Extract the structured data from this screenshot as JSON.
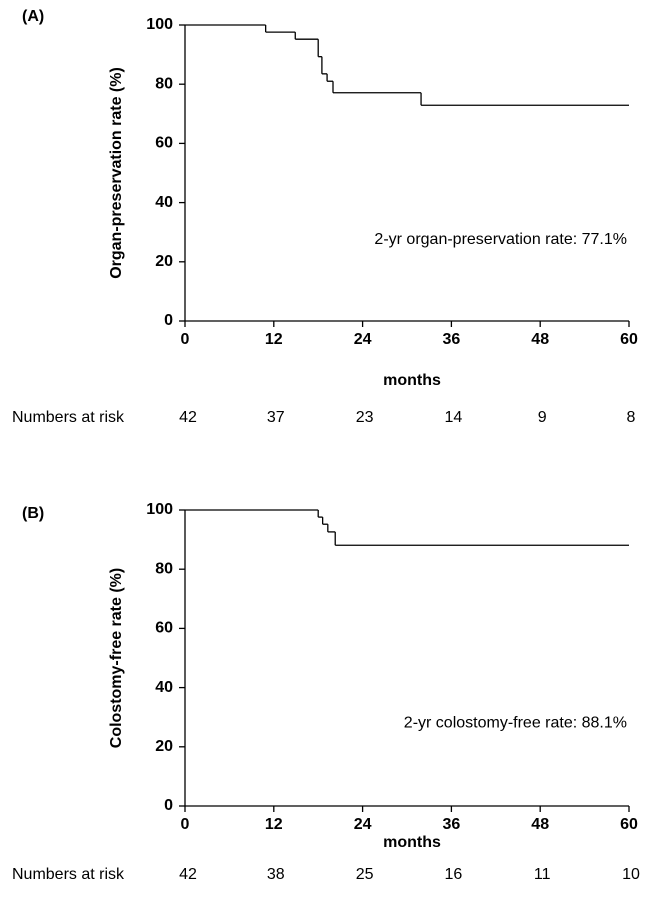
{
  "chart_data": [
    {
      "type": "step",
      "panel_label": "(A)",
      "ylabel": "Organ-preservation rate (%)",
      "xlabel": "months",
      "annotation": "2-yr organ-preservation rate: 77.1%",
      "x": [
        0,
        10.9,
        14.9,
        18,
        18.5,
        19.2,
        20,
        31.9,
        60
      ],
      "values": [
        100,
        97.6,
        95.2,
        89.3,
        83.5,
        81,
        77.1,
        72.9,
        72.9
      ],
      "color": "#000000",
      "xlim": [
        0,
        60
      ],
      "xticks": [
        0,
        12,
        24,
        36,
        48,
        60
      ],
      "ylim": [
        0,
        100
      ],
      "yticks": [
        0,
        20,
        40,
        60,
        80,
        100
      ],
      "risk_table": {
        "label": "Numbers at risk",
        "values": [
          42,
          37,
          23,
          14,
          9,
          8
        ]
      }
    },
    {
      "type": "step",
      "panel_label": "(B)",
      "ylabel": "Colostomy-free rate (%)",
      "xlabel": "months",
      "annotation": "2-yr colostomy-free rate: 88.1%",
      "x": [
        0,
        18,
        18.6,
        19.3,
        20.3,
        60
      ],
      "values": [
        100,
        97.6,
        95.2,
        92.6,
        88.1,
        88.1
      ],
      "color": "#000000",
      "xlim": [
        0,
        60
      ],
      "xticks": [
        0,
        12,
        24,
        36,
        48,
        60
      ],
      "ylim": [
        0,
        100
      ],
      "yticks": [
        0,
        20,
        40,
        60,
        80,
        100
      ],
      "risk_table": {
        "label": "Numbers at risk",
        "values": [
          42,
          38,
          25,
          16,
          11,
          10
        ]
      }
    }
  ]
}
